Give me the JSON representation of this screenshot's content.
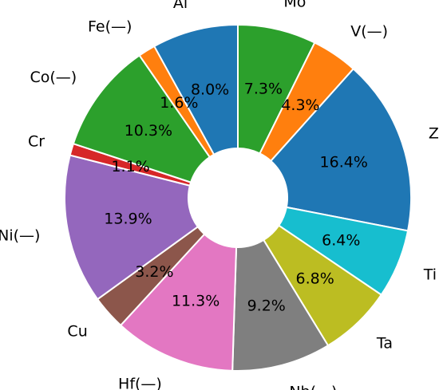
{
  "chart_data": {
    "type": "pie",
    "donut": true,
    "direction": "clockwise",
    "start": "top",
    "categories": [
      "Mo",
      "V(—)",
      "Zr",
      "Ti",
      "Ta",
      "Nb(—)",
      "Hf(—)",
      "Cu",
      "Ni(—)",
      "Cr",
      "Co(—)",
      "Fe(—)",
      "Al"
    ],
    "values": [
      7.3,
      4.3,
      16.4,
      6.4,
      6.8,
      9.2,
      11.3,
      3.2,
      13.9,
      1.1,
      10.3,
      1.6,
      8.0
    ],
    "value_labels": [
      "7.3%",
      "4.3%",
      "16.4%",
      "6.4%",
      "6.8%",
      "9.2%",
      "11.3%",
      "3.2%",
      "13.9%",
      "1.1%",
      "10.3%",
      "1.6%",
      "8.0%"
    ],
    "colors": [
      "#2ca02c",
      "#ff7f0e",
      "#1f77b4",
      "#17becf",
      "#bcbd22",
      "#7f7f7f",
      "#e377c2",
      "#8c564b",
      "#9467bd",
      "#d62728",
      "#2ca02c",
      "#ff7f0e",
      "#1f77b4"
    ]
  }
}
